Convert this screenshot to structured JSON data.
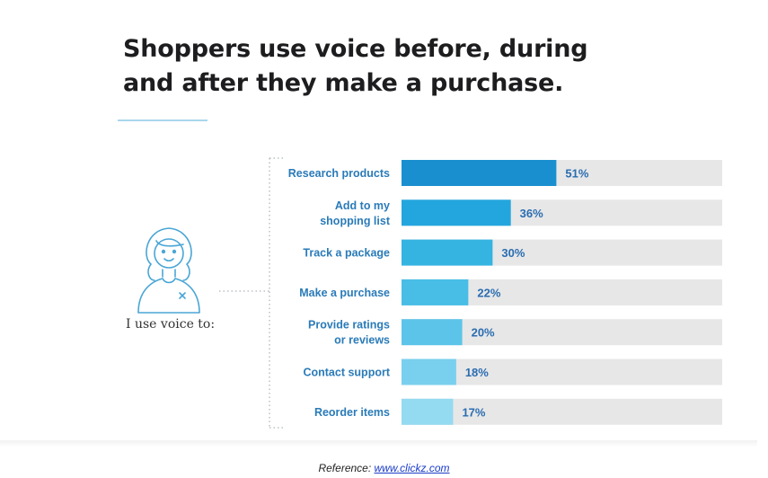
{
  "title_lines": [
    "Shoppers use voice before, during",
    "and after they make a purchase."
  ],
  "intro_text": "I use voice to:",
  "footer": {
    "prefix": "Reference: ",
    "link_text": "www.clickz.com"
  },
  "colors": {
    "track": "#e7e7e8",
    "label": "#2a7bb8",
    "value": "#2a6db0",
    "bars": [
      "#1a8fcf",
      "#23a6dd",
      "#35b4e2",
      "#48bde6",
      "#5cc4e9",
      "#79cfee",
      "#94daf1"
    ]
  },
  "chart_data": {
    "type": "bar",
    "orientation": "horizontal",
    "title": "Shoppers use voice before, during and after they make a purchase.",
    "categories": [
      [
        "Research products"
      ],
      [
        "Add to my",
        "shopping list"
      ],
      [
        "Track a package"
      ],
      [
        "Make a purchase"
      ],
      [
        "Provide ratings",
        "or reviews"
      ],
      [
        "Contact support"
      ],
      [
        "Reorder items"
      ]
    ],
    "values": [
      51,
      36,
      30,
      22,
      20,
      18,
      17
    ],
    "value_labels": [
      "51%",
      "36%",
      "30%",
      "22%",
      "20%",
      "18%",
      "17%"
    ],
    "xlim": [
      0,
      100
    ],
    "grid": false,
    "legend": "none"
  }
}
